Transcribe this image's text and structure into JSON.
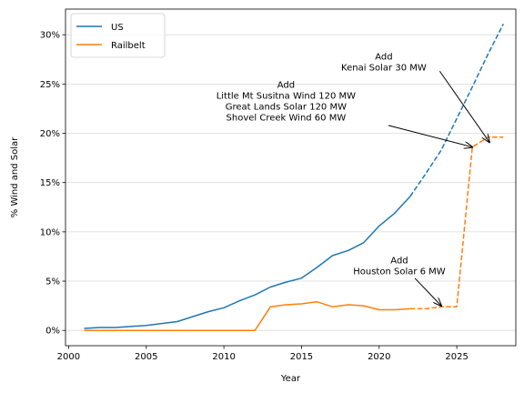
{
  "chart_data": {
    "type": "line",
    "xlabel": "Year",
    "ylabel": "% Wind and Solar",
    "xlim": [
      1999.8,
      2028.8
    ],
    "ylim": [
      -1.55,
      32.6
    ],
    "x_ticks": [
      2000,
      2005,
      2010,
      2015,
      2020,
      2025
    ],
    "x_tick_labels": [
      "2000",
      "2005",
      "2010",
      "2015",
      "2020",
      "2025"
    ],
    "y_ticks": [
      0,
      5,
      10,
      15,
      20,
      25,
      30
    ],
    "y_tick_labels": [
      "0%",
      "5%",
      "10%",
      "15%",
      "20%",
      "25%",
      "30%"
    ],
    "grid": "horizontal",
    "legend_position": "top-left",
    "series": [
      {
        "name": "US",
        "color": "#1f77b4",
        "solid": [
          [
            2001,
            0.2
          ],
          [
            2002,
            0.3
          ],
          [
            2003,
            0.3
          ],
          [
            2004,
            0.4
          ],
          [
            2005,
            0.5
          ],
          [
            2006,
            0.7
          ],
          [
            2007,
            0.9
          ],
          [
            2008,
            1.4
          ],
          [
            2009,
            1.9
          ],
          [
            2010,
            2.3
          ],
          [
            2011,
            3.0
          ],
          [
            2012,
            3.6
          ],
          [
            2013,
            4.4
          ],
          [
            2014,
            4.9
          ],
          [
            2015,
            5.3
          ],
          [
            2016,
            6.4
          ],
          [
            2017,
            7.6
          ],
          [
            2018,
            8.1
          ],
          [
            2019,
            8.9
          ],
          [
            2020,
            10.6
          ],
          [
            2021,
            11.9
          ],
          [
            2022,
            13.6
          ]
        ],
        "dashed": [
          [
            2022,
            13.6
          ],
          [
            2023,
            15.9
          ],
          [
            2024,
            18.3
          ],
          [
            2025,
            21.5
          ],
          [
            2026,
            24.7
          ],
          [
            2027,
            28.0
          ],
          [
            2028,
            31.1
          ]
        ]
      },
      {
        "name": "Railbelt",
        "color": "#ff7f0e",
        "solid": [
          [
            2001,
            0.0
          ],
          [
            2002,
            0.0
          ],
          [
            2003,
            0.0
          ],
          [
            2004,
            0.0
          ],
          [
            2005,
            0.0
          ],
          [
            2006,
            0.0
          ],
          [
            2007,
            0.0
          ],
          [
            2008,
            0.0
          ],
          [
            2009,
            0.0
          ],
          [
            2010,
            0.0
          ],
          [
            2011,
            0.0
          ],
          [
            2012,
            0.0
          ],
          [
            2013,
            2.4
          ],
          [
            2014,
            2.6
          ],
          [
            2015,
            2.7
          ],
          [
            2016,
            2.9
          ],
          [
            2017,
            2.4
          ],
          [
            2018,
            2.6
          ],
          [
            2019,
            2.5
          ],
          [
            2020,
            2.1
          ],
          [
            2021,
            2.1
          ],
          [
            2022,
            2.2
          ]
        ],
        "dashed": [
          [
            2022,
            2.2
          ],
          [
            2023,
            2.2
          ],
          [
            2024,
            2.4
          ],
          [
            2025,
            2.4
          ],
          [
            2026,
            18.6
          ],
          [
            2027,
            19.6
          ],
          [
            2028,
            19.6
          ]
        ]
      }
    ],
    "annotations": [
      {
        "lines": [
          "Add",
          "Kenai Solar 30 MW"
        ],
        "text_at": [
          2020.3,
          27.5
        ],
        "arrow_from": [
          2023.9,
          26.3
        ],
        "arrow_to": [
          2027.1,
          19.1
        ]
      },
      {
        "lines": [
          "Add",
          "Little Mt Susitna Wind 120 MW",
          "Great Lands Solar 120 MW",
          "Shovel Creek Wind 60 MW"
        ],
        "text_at": [
          2014.0,
          24.6
        ],
        "arrow_from": [
          2020.6,
          20.8
        ],
        "arrow_to": [
          2026.0,
          18.6
        ]
      },
      {
        "lines": [
          "Add",
          "Houston Solar 6 MW"
        ],
        "text_at": [
          2021.3,
          6.8
        ],
        "arrow_from": [
          2022.3,
          5.3
        ],
        "arrow_to": [
          2024.0,
          2.5
        ]
      }
    ]
  }
}
